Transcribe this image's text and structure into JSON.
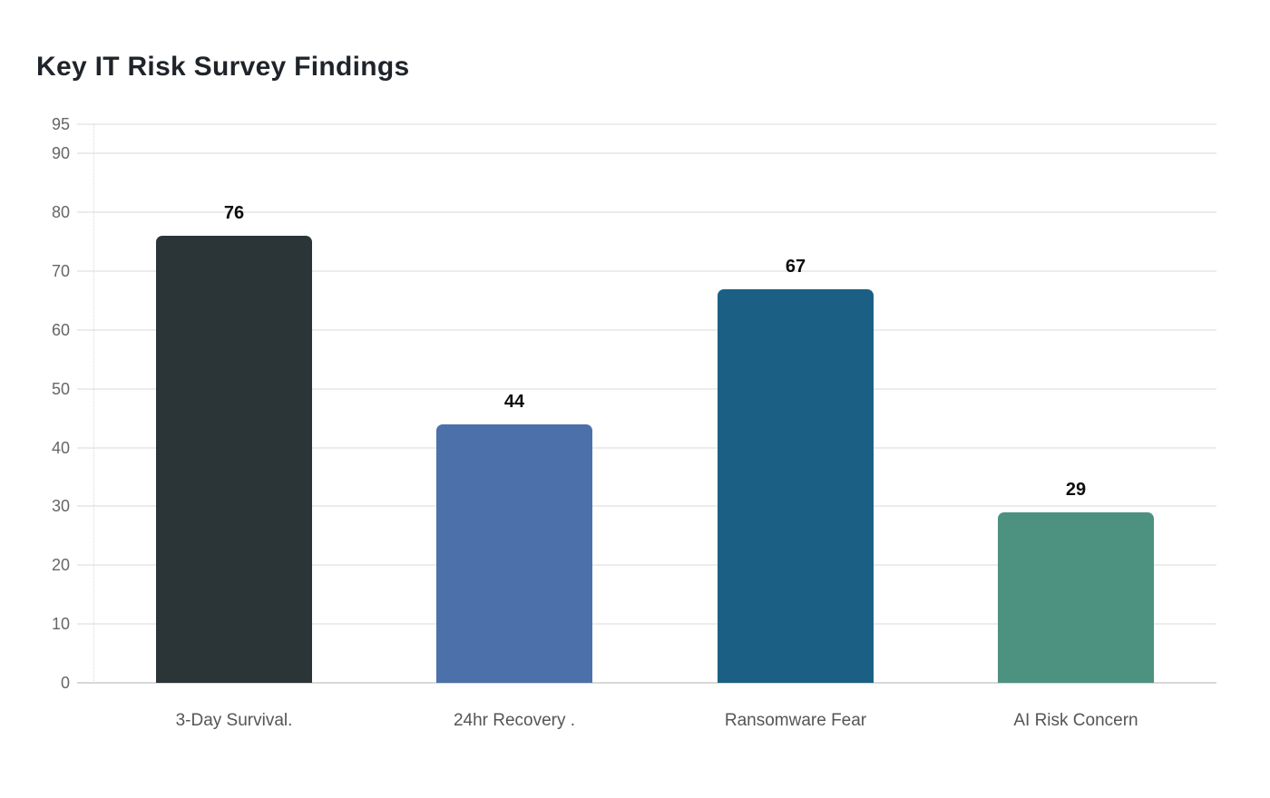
{
  "chart_data": {
    "type": "bar",
    "title": "Key IT Risk Survey Findings",
    "categories": [
      "3-Day Survival.",
      "24hr Recovery .",
      "Ransomware Fear",
      "AI Risk Concern"
    ],
    "values": [
      76,
      44,
      67,
      29
    ],
    "value_labels": [
      "76",
      "44",
      "67",
      "29"
    ],
    "bar_colors": [
      "#2b3436",
      "#4c70aa",
      "#1b6084",
      "#4d9180"
    ],
    "y_ticks": [
      0,
      10,
      20,
      30,
      40,
      50,
      60,
      70,
      80,
      90,
      95
    ],
    "ylim": [
      0,
      95
    ],
    "xlabel": "",
    "ylabel": "",
    "grid": "horizontal",
    "legend": "none",
    "colors": {
      "background": "#ffffff",
      "title": "#1f242a",
      "tick_label": "#666666",
      "category_label": "#555555",
      "value_label": "#0d0d0d",
      "gridline": "#ececec",
      "zero_line": "#d8d8d8",
      "axis_dotted": "#d9d9d9"
    }
  }
}
